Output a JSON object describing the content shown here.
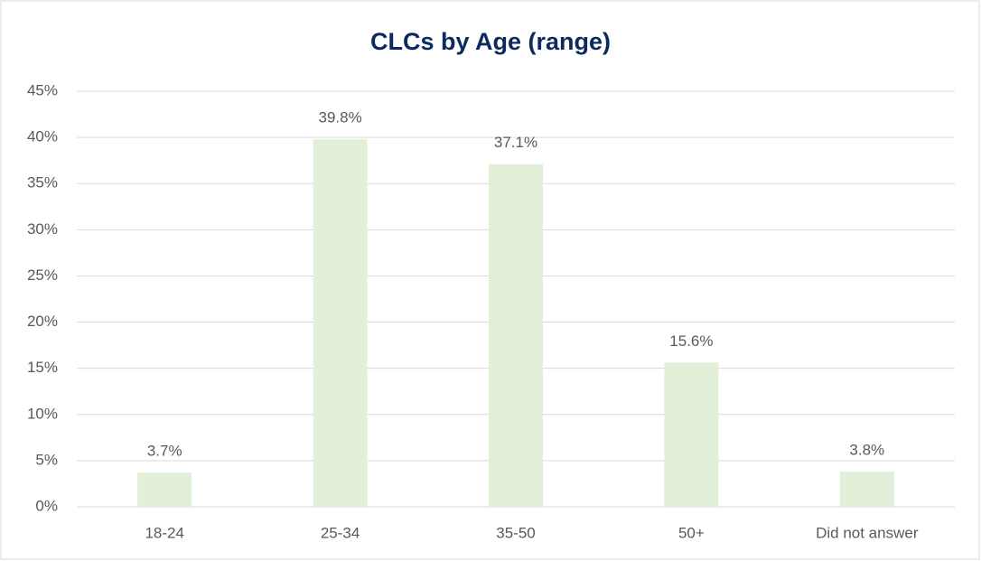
{
  "chart_data": {
    "type": "bar",
    "title": "CLCs by Age (range)",
    "categories": [
      "18-24",
      "25-34",
      "35-50",
      "50+",
      "Did not answer"
    ],
    "values": [
      3.7,
      39.8,
      37.1,
      15.6,
      3.8
    ],
    "value_labels": [
      "3.7%",
      "39.8%",
      "37.1%",
      "15.6%",
      "3.8%"
    ],
    "color": "#e2efd9",
    "ylim": [
      0,
      45
    ],
    "yticks": [
      {
        "value": 0,
        "label": "0%"
      },
      {
        "value": 5,
        "label": "5%"
      },
      {
        "value": 10,
        "label": "10%"
      },
      {
        "value": 15,
        "label": "15%"
      },
      {
        "value": 20,
        "label": "20%"
      },
      {
        "value": 25,
        "label": "25%"
      },
      {
        "value": 30,
        "label": "30%"
      },
      {
        "value": 35,
        "label": "35%"
      },
      {
        "value": 40,
        "label": "40%"
      },
      {
        "value": 45,
        "label": "45%"
      }
    ],
    "grid": true
  }
}
